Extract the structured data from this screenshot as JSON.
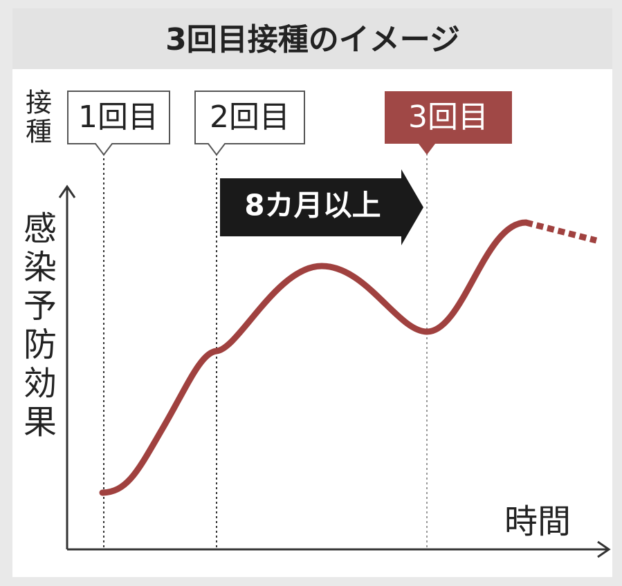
{
  "title": "3回目接種のイメージ",
  "doses_axis_label": "接種",
  "doses": [
    "1回目",
    "2回目",
    "3回目"
  ],
  "interval_label": "8カ月以上",
  "y_axis_label": "感染予防効果",
  "x_axis_label": "時間"
}
